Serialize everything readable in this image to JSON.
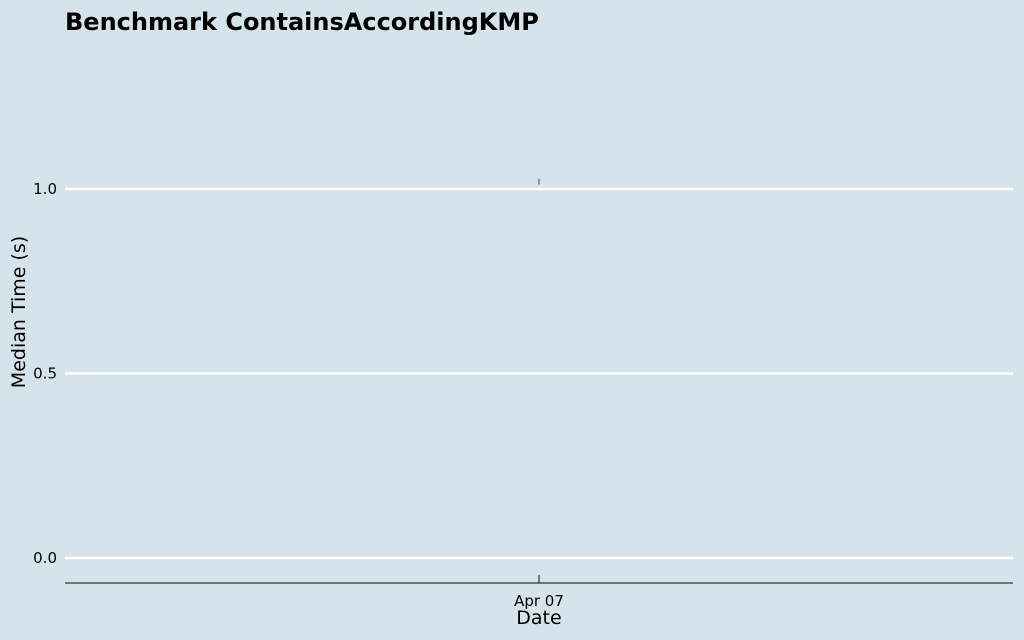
{
  "chart_data": {
    "type": "line",
    "title": "Benchmark ContainsAccordingKMP",
    "xlabel": "Date",
    "ylabel": "Median Time (s)",
    "x_ticks": [
      "Apr 07"
    ],
    "y_ticks": [
      "0.0",
      "0.5",
      "1.0"
    ],
    "ylim": [
      -0.065,
      1.3
    ],
    "grid": true,
    "series": [
      {
        "x": [
          "Apr 07"
        ],
        "values": [
          1.02
        ],
        "low": [
          1.015
        ],
        "high": [
          1.025
        ]
      }
    ],
    "colors": {
      "background": "#d5e4eb",
      "grid": "#ffffff",
      "axis": "#333333",
      "series": "#2a4a6b"
    }
  }
}
